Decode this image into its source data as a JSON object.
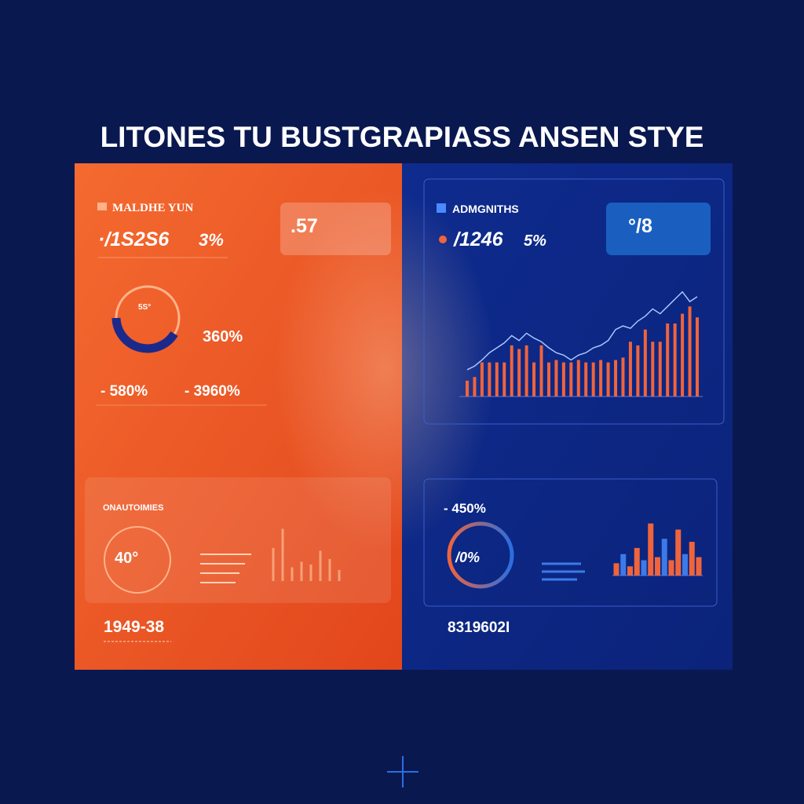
{
  "title": "LITONES TU BUSTGRAPIASS ANSEN STYE",
  "left_panel": {
    "header": "MALDHE YUN",
    "metric": "·/1S2S6",
    "metric_change": "3%",
    "card_value": ".57",
    "donut_label": "5S°",
    "donut_value": "360%",
    "stat_a": "- 580%",
    "stat_b": "- 3960%",
    "section_title": "ONAUTOIMIES",
    "gauge_value": "40°",
    "footer_value": "1949-38",
    "mini_chart": {
      "type": "bar",
      "color": "#f6a07a",
      "ylim": [
        0,
        100
      ],
      "values": [
        60,
        95,
        25,
        35,
        30,
        55,
        40,
        20
      ]
    }
  },
  "right_panel": {
    "header": "ADMGNITHS",
    "metric": "/1246",
    "metric_change": "5%",
    "card_value": "°/8",
    "section_value": "- 450%",
    "gauge_value": "/0%",
    "footer_value": "8319602I",
    "main_chart": {
      "type": "bar",
      "ylim": [
        0,
        100
      ],
      "series": [
        {
          "type": "bar",
          "color": "#f0643c",
          "values": [
            13,
            16,
            28,
            28,
            28,
            28,
            42,
            39,
            42,
            28,
            42,
            28,
            30,
            28,
            28,
            30,
            28,
            28,
            30,
            28,
            30,
            32,
            45,
            42,
            55,
            45,
            45,
            60,
            60,
            68,
            74,
            65
          ]
        },
        {
          "type": "line",
          "color": "#a9c6ff",
          "values": [
            22,
            25,
            30,
            36,
            40,
            44,
            50,
            46,
            52,
            48,
            45,
            40,
            36,
            34,
            30,
            34,
            36,
            40,
            42,
            46,
            55,
            58,
            56,
            62,
            66,
            72,
            68,
            74,
            80,
            86,
            78,
            82
          ]
        }
      ]
    },
    "mini_chart": {
      "type": "bar",
      "color": "#f0643c",
      "ylim": [
        0,
        100
      ],
      "values": [
        20,
        35,
        15,
        45,
        25,
        85,
        30,
        60,
        25,
        75,
        35,
        55,
        30
      ]
    }
  }
}
